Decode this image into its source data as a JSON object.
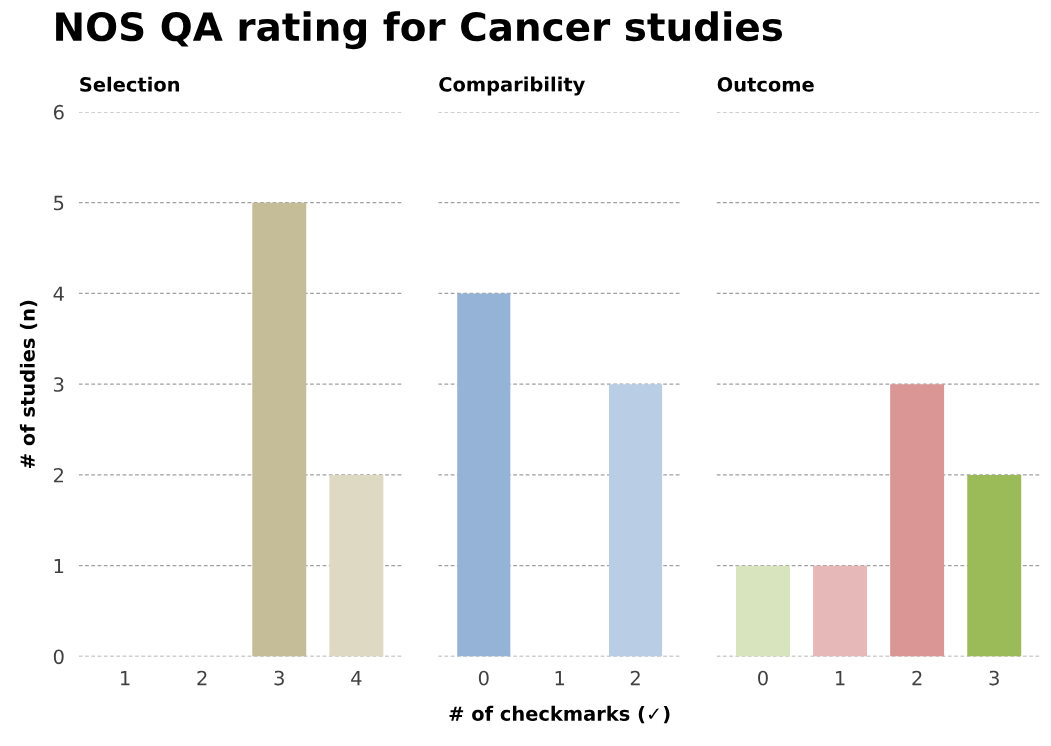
{
  "chart_data": [
    {
      "type": "bar",
      "title": "NOS QA rating for Cancer studies",
      "subtitle": "Selection",
      "ylabel": "# of studies (n)",
      "categories": [
        "1",
        "2",
        "3",
        "4"
      ],
      "values": [
        0,
        0,
        5,
        2
      ],
      "colors": [
        "#c4bd97",
        "#c4bd97",
        "#c4bd97",
        "#ddd9c3"
      ],
      "ylim": [
        0,
        6
      ],
      "yticks": [
        0,
        1,
        2,
        3,
        4,
        5,
        6
      ],
      "grid": "y",
      "legend": false
    },
    {
      "type": "bar",
      "subtitle": "Comparibility",
      "xlabel": "# of checkmarks (✓)",
      "categories": [
        "0",
        "1",
        "2"
      ],
      "values": [
        4,
        0,
        3
      ],
      "colors": [
        "#95b3d7",
        "#95b3d7",
        "#b9cde5"
      ],
      "ylim": [
        0,
        6
      ],
      "yticks": [
        0,
        1,
        2,
        3,
        4,
        5,
        6
      ],
      "grid": "y",
      "tick_labels": "x",
      "legend": false
    },
    {
      "type": "bar",
      "subtitle": "Outcome",
      "categories": [
        "0",
        "1",
        "2",
        "3"
      ],
      "values": [
        1,
        1,
        3,
        2
      ],
      "colors": [
        "#d7e4bd",
        "#e6b9b8",
        "#d99694",
        "#9bbb59"
      ],
      "ylim": [
        0,
        6
      ],
      "yticks": [
        0,
        1,
        2,
        3,
        4,
        5,
        6
      ],
      "grid": "y",
      "tick_labels": "x",
      "legend": false
    }
  ]
}
